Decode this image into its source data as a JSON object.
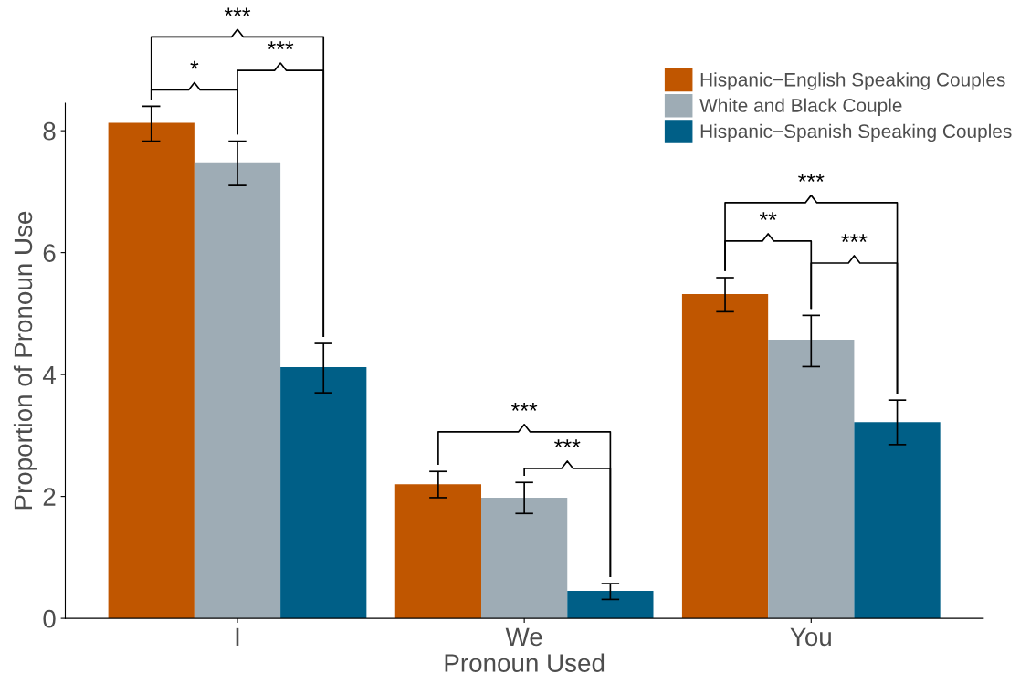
{
  "chart_data": {
    "type": "bar",
    "xlabel": "Pronoun Used",
    "ylabel": "Proportion of Pronoun Use",
    "categories": [
      "I",
      "We",
      "You"
    ],
    "series": [
      {
        "name": "Hispanic−English Speaking Couples",
        "color": "#c05600",
        "values": [
          8.13,
          2.2,
          5.32
        ],
        "errors": [
          [
            7.83,
            8.4
          ],
          [
            1.98,
            2.41
          ],
          [
            5.03,
            5.59
          ]
        ]
      },
      {
        "name": "White and Black Couple",
        "color": "#9eacb5",
        "values": [
          7.48,
          1.98,
          4.57
        ],
        "errors": [
          [
            7.1,
            7.83
          ],
          [
            1.72,
            2.23
          ],
          [
            4.13,
            4.97
          ]
        ]
      },
      {
        "name": "Hispanic−Spanish Speaking Couples",
        "color": "#005f87",
        "values": [
          4.12,
          0.45,
          3.22
        ],
        "errors": [
          [
            3.7,
            4.51
          ],
          [
            0.31,
            0.57
          ],
          [
            2.85,
            3.58
          ]
        ]
      }
    ],
    "ylim": [
      0,
      8.45
    ],
    "yticks": [
      0,
      2,
      4,
      6,
      8
    ],
    "grid": false,
    "legend": "top right",
    "annotations": [
      "***",
      "*",
      "***",
      "***",
      "***",
      "***",
      "**",
      "***"
    ]
  }
}
